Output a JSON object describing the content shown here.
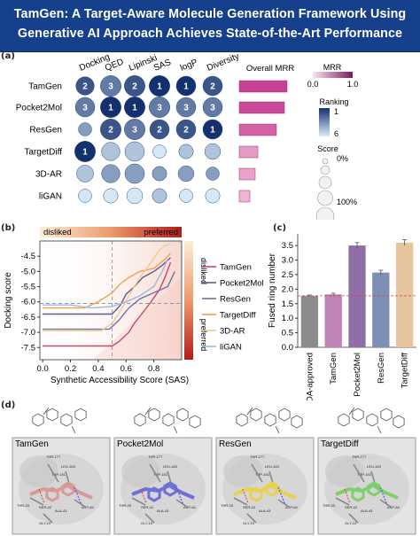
{
  "banner": {
    "title_line1": "TamGen: A Target-Aware Molecule Generation Framework Using",
    "title_line2": "Generative AI Approach Achieves State-of-the-Art Performance"
  },
  "panels": {
    "a": "(a)",
    "b": "(b)",
    "c": "(c)",
    "d": "(d)"
  },
  "colors": {
    "banner": "#163f8c",
    "mrr": "#c0328a",
    "rank_dark": "#14306e",
    "rank_light": "#c6e2f2"
  },
  "chart_data": [
    {
      "type": "heatmap",
      "panel": "a",
      "columns": [
        "Docking",
        "QED",
        "Lipinski",
        "SAS",
        "logP",
        "Diversity"
      ],
      "rows": [
        "TamGen",
        "Pocket2Mol",
        "ResGen",
        "TargetDiff",
        "3D-AR",
        "liGAN"
      ],
      "ranking_labels": [
        [
          "2",
          "3",
          "2",
          "1",
          "1",
          "2"
        ],
        [
          "3",
          "1",
          "1",
          "3",
          "3",
          "3"
        ],
        [
          "",
          "2",
          "3",
          "2",
          "2",
          "1"
        ],
        [
          "1",
          "",
          "",
          "",
          "",
          ""
        ],
        [
          "",
          "",
          "",
          "",
          "",
          ""
        ],
        [
          "",
          "",
          "",
          "",
          "",
          ""
        ]
      ],
      "ranking_values": [
        [
          2,
          3,
          2,
          1,
          1,
          2
        ],
        [
          3,
          1,
          1,
          3,
          3,
          3
        ],
        [
          4,
          2,
          3,
          2,
          2,
          1
        ],
        [
          1,
          5,
          5,
          6,
          5,
          5
        ],
        [
          5,
          4,
          4,
          4,
          4,
          4
        ],
        [
          6,
          6,
          6,
          5,
          6,
          6
        ]
      ],
      "score_size": [
        [
          0.45,
          0.55,
          0.55,
          0.55,
          0.5,
          0.5
        ],
        [
          0.5,
          0.55,
          0.55,
          0.55,
          0.5,
          0.5
        ],
        [
          0.25,
          0.55,
          0.55,
          0.5,
          0.5,
          0.5
        ],
        [
          0.55,
          0.45,
          0.5,
          0.25,
          0.3,
          0.35
        ],
        [
          0.4,
          0.45,
          0.5,
          0.3,
          0.35,
          0.25
        ],
        [
          0.25,
          0.3,
          0.35,
          0.3,
          0.25,
          0.3
        ]
      ],
      "overall_mrr": {
        "label": "Overall MRR",
        "values": [
          0.9,
          0.85,
          0.7,
          0.35,
          0.3,
          0.2
        ]
      },
      "legends": {
        "mrr_title": "MRR",
        "mrr_ticks": [
          "0.0",
          "1.0"
        ],
        "ranking_title": "Ranking",
        "ranking_ticks": [
          "1",
          "6"
        ],
        "score_title": "Score",
        "score_ticks": [
          "0%",
          "100%"
        ]
      }
    },
    {
      "type": "line",
      "panel": "b",
      "xlabel": "Synthetic Accessibility Score (SAS)",
      "ylabel": "Docking score",
      "xlim": [
        -0.02,
        1.0
      ],
      "ylim": [
        -7.9,
        -4.0
      ],
      "xticks": [
        "0.0",
        "0.2",
        "0.4",
        "0.6",
        "0.8"
      ],
      "yticks": [
        "-4.5",
        "-5.0",
        "-5.5",
        "-6.0",
        "-6.5",
        "-7.0",
        "-7.5"
      ],
      "top_labels": {
        "left": "disliked",
        "right": "preferred"
      },
      "side_labels": {
        "top": "disliked",
        "bottom": "preferred"
      },
      "series": [
        {
          "name": "TamGen",
          "color": "#c84868",
          "x": [
            0.0,
            0.35,
            0.5,
            0.55,
            0.62,
            0.66,
            0.73,
            0.78,
            0.84,
            0.88,
            0.92
          ],
          "y": [
            -7.45,
            -7.45,
            -7.45,
            -7.3,
            -7.0,
            -6.7,
            -6.3,
            -6.0,
            -5.6,
            -5.2,
            -4.7
          ]
        },
        {
          "name": "Pocket2Mol",
          "color": "#5d5d8f",
          "x": [
            0.0,
            0.5,
            0.56,
            0.6,
            0.66,
            0.72,
            0.8,
            0.86,
            0.92
          ],
          "y": [
            -6.4,
            -6.4,
            -6.1,
            -5.75,
            -5.5,
            -5.2,
            -5.0,
            -4.8,
            -4.55
          ]
        },
        {
          "name": "ResGen",
          "color": "#7070a8",
          "x": [
            0.0,
            0.48,
            0.55,
            0.62,
            0.7,
            0.8,
            0.9,
            0.95
          ],
          "y": [
            -6.9,
            -6.9,
            -6.6,
            -6.2,
            -5.9,
            -5.7,
            -5.5,
            -5.0
          ]
        },
        {
          "name": "TargetDiff",
          "color": "#f0a04b",
          "x": [
            0.0,
            0.3,
            0.4,
            0.5,
            0.56,
            0.62,
            0.7,
            0.8,
            0.88,
            0.92
          ],
          "y": [
            -6.2,
            -6.2,
            -6.0,
            -5.7,
            -5.4,
            -5.2,
            -5.0,
            -4.9,
            -4.6,
            -4.4
          ]
        },
        {
          "name": "3D-AR",
          "color": "#f2c98e",
          "x": [
            0.0,
            0.42,
            0.5,
            0.56,
            0.62,
            0.7,
            0.78,
            0.84,
            0.88,
            0.92
          ],
          "y": [
            -6.95,
            -6.95,
            -6.7,
            -6.3,
            -5.8,
            -5.2,
            -4.7,
            -4.3,
            -4.15,
            -4.1
          ]
        },
        {
          "name": "liGAN",
          "color": "#9fb7e0",
          "x": [
            0.0,
            0.2,
            0.35,
            0.5,
            0.6,
            0.7,
            0.8,
            0.86,
            0.9
          ],
          "y": [
            -6.1,
            -6.1,
            -6.2,
            -6.15,
            -6.0,
            -5.8,
            -5.5,
            -5.0,
            -4.6
          ]
        }
      ],
      "vline_x": 0.5,
      "hline_y": -6.05
    },
    {
      "type": "bar",
      "panel": "c",
      "ylabel": "Fused ring number",
      "categories": [
        "FDA-approved",
        "TamGen",
        "Pocket2Mol",
        "ResGen",
        "TargetDiff"
      ],
      "values": [
        1.77,
        1.82,
        3.5,
        2.57,
        3.6
      ],
      "errors": [
        0.03,
        0.04,
        0.1,
        0.08,
        0.1
      ],
      "colors": [
        "#8c8c8c",
        "#c083b6",
        "#8f6fa6",
        "#7d8fb5",
        "#e6c49c"
      ],
      "ylim": [
        0.0,
        3.9
      ],
      "yticks": [
        "0.0",
        "0.5",
        "1.0",
        "1.5",
        "2.0",
        "2.5",
        "3.0",
        "3.5"
      ],
      "reference_line": 1.77
    }
  ],
  "panel_d": {
    "models": [
      "TamGen",
      "Pocket2Mol",
      "ResGen",
      "TargetDiff"
    ],
    "ligand_colors": [
      "#d89a96",
      "#6f6fd8",
      "#e7d24a",
      "#7fcf6c"
    ],
    "residues": [
      "THR-177",
      "LEU-163",
      "TRP-151",
      "THR-33",
      "SER-42",
      "ALA-43",
      "ASP-64",
      "GLY-10"
    ]
  }
}
